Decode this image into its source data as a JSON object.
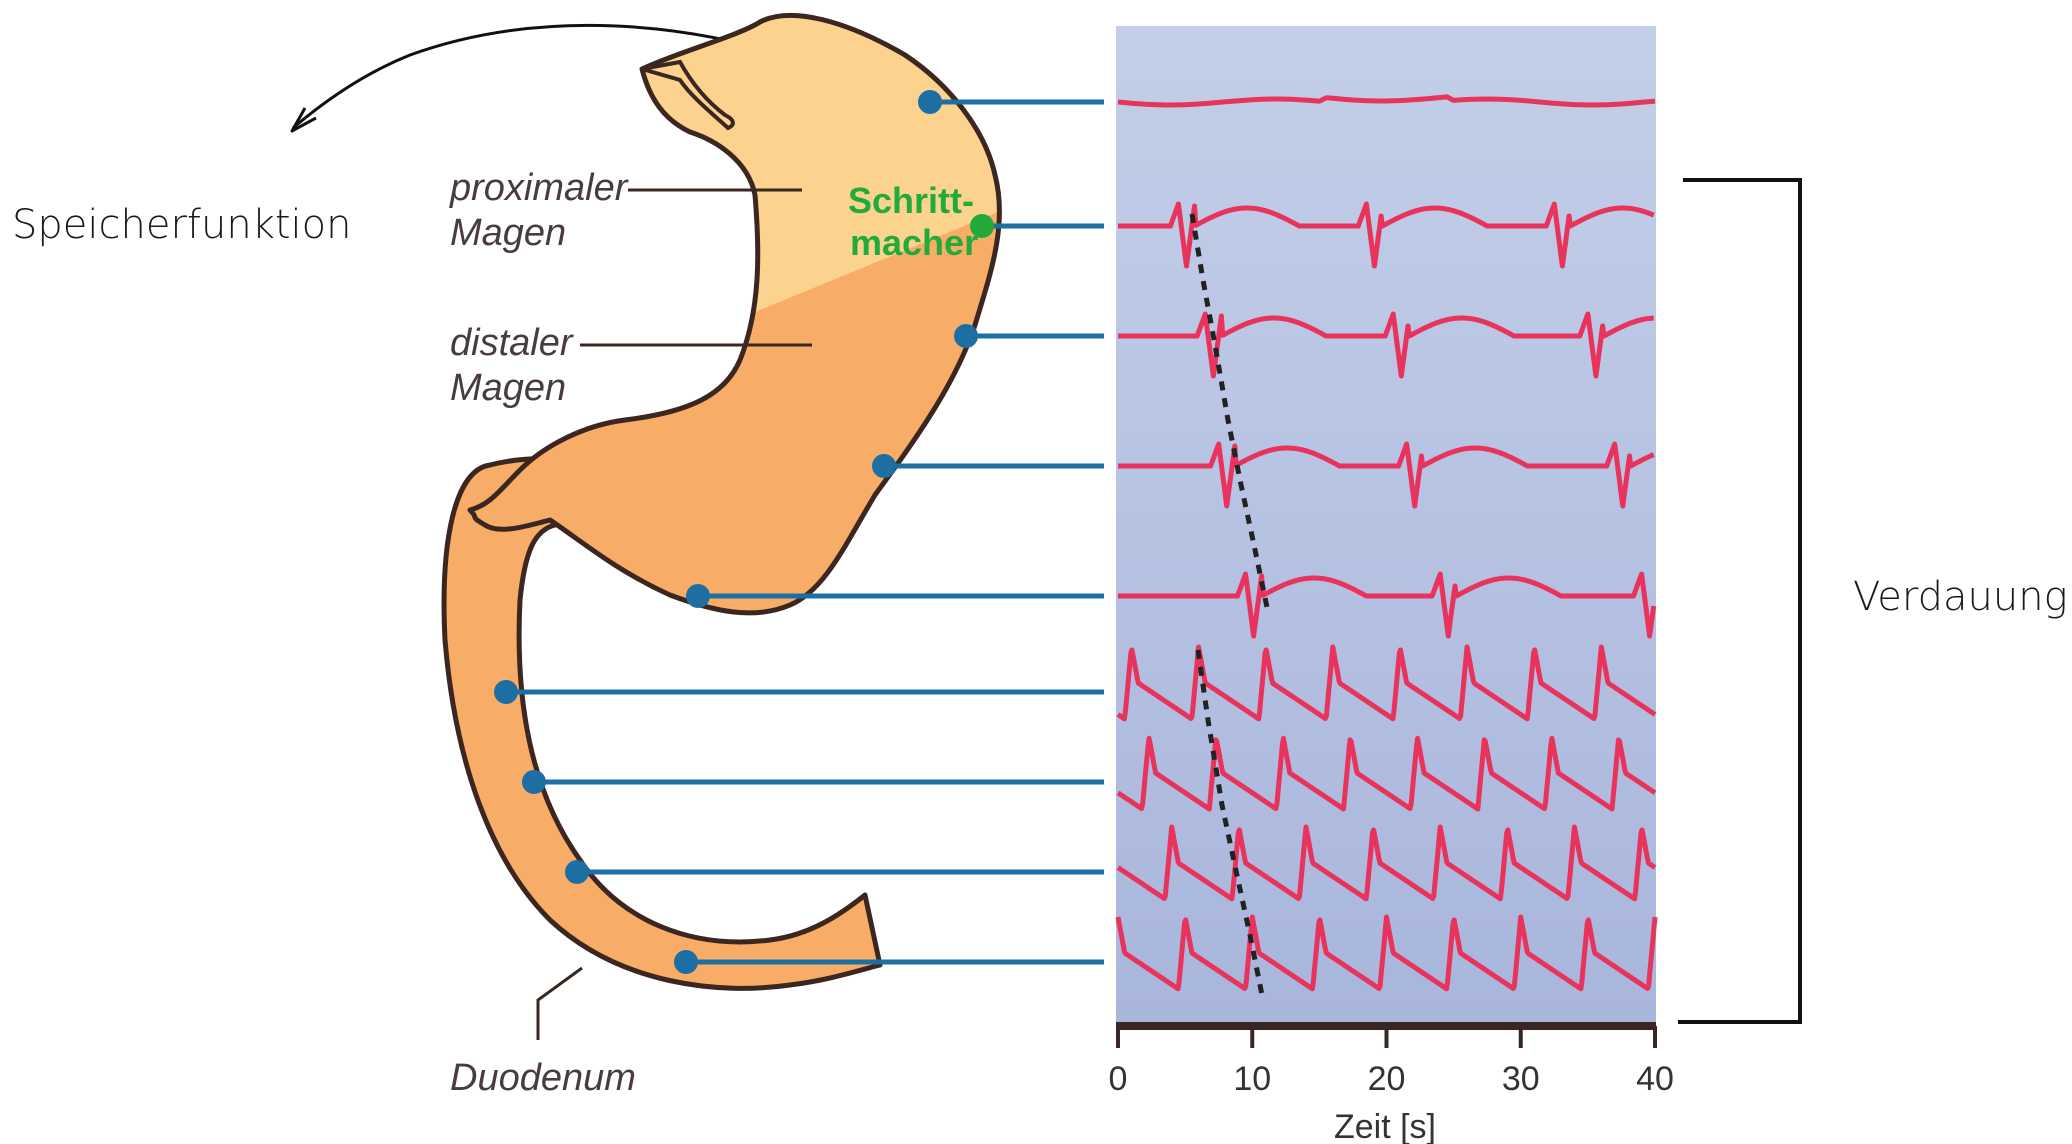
{
  "labels": {
    "storage_function": "Speicherfunktion",
    "digestion": "Verdauung",
    "proximal_stomach_line1": "proximaler",
    "proximal_stomach_line2": "Magen",
    "distal_stomach_line1": "distaler",
    "distal_stomach_line2": "Magen",
    "pacemaker_line1": "Schritt-",
    "pacemaker_line2": "macher",
    "duodenum": "Duodenum"
  },
  "axis": {
    "label": "Zeit [s]",
    "ticks": [
      "0",
      "10",
      "20",
      "30",
      "40"
    ]
  },
  "colors": {
    "proximal": "#fcd38e",
    "distal": "#f7ad68",
    "outline": "#3b2620",
    "electrode": "#1d6fa3",
    "pacemaker": "#22aa3a",
    "trace": "#e8345c",
    "panel_top": "#c3cfe8",
    "panel_bottom": "#a9b6dc",
    "axis": "#3a2526"
  },
  "traces": [
    {
      "type": "flat",
      "events": []
    },
    {
      "type": "slow",
      "events": [
        4.5,
        18.5,
        32.5
      ]
    },
    {
      "type": "slow",
      "events": [
        6.5,
        20.5,
        35.0
      ]
    },
    {
      "type": "slow",
      "events": [
        7.5,
        21.5,
        37.0
      ]
    },
    {
      "type": "slow",
      "events": [
        9.5,
        24.0,
        39.0
      ]
    },
    {
      "type": "fast",
      "phase": 5.5
    },
    {
      "type": "fast",
      "phase": 6.8
    },
    {
      "type": "fast",
      "phase": 8.5
    },
    {
      "type": "fast",
      "phase": 9.5
    }
  ]
}
